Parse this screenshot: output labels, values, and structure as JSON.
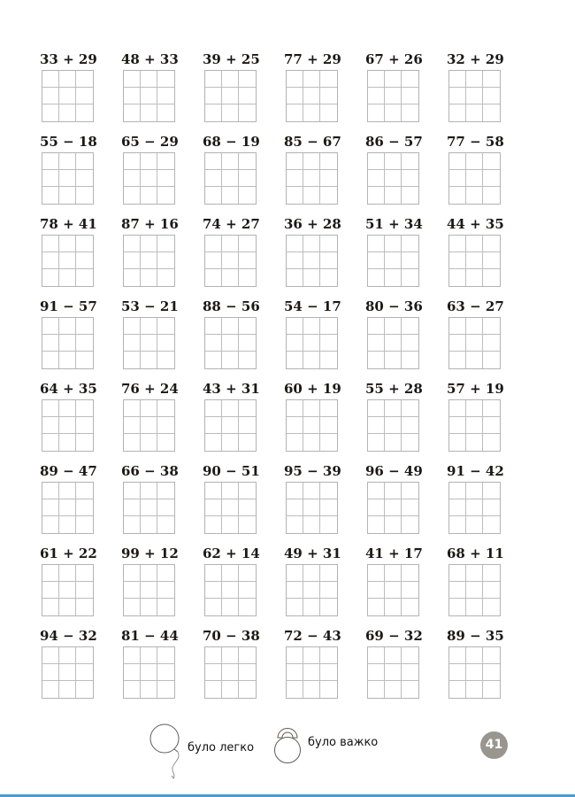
{
  "worksheet": {
    "rows": [
      [
        "33 + 29",
        "48 + 33",
        "39 + 25",
        "77 + 29",
        "67 + 26",
        "32 + 29"
      ],
      [
        "55 − 18",
        "65 − 29",
        "68 − 19",
        "85 − 67",
        "86 − 57",
        "77 − 58"
      ],
      [
        "78 + 41",
        "87 + 16",
        "74 + 27",
        "36 + 28",
        "51 + 34",
        "44 + 35"
      ],
      [
        "91 − 57",
        "53 − 21",
        "88 − 56",
        "54 − 17",
        "80 − 36",
        "63 − 27"
      ],
      [
        "64 + 35",
        "76 + 24",
        "43 + 31",
        "60 + 19",
        "55 + 28",
        "57 + 19"
      ],
      [
        "89 − 47",
        "66 − 38",
        "90 − 51",
        "95 − 39",
        "96 − 49",
        "91 − 42"
      ],
      [
        "61 + 22",
        "99 + 12",
        "62 + 14",
        "49 + 31",
        "41 + 17",
        "68 + 11"
      ],
      [
        "94 − 32",
        "81 − 44",
        "70 − 38",
        "72 − 43",
        "69 − 32",
        "89 − 35"
      ]
    ],
    "answer_grid": {
      "rows": 3,
      "cols": 3,
      "line_color": "#b3b3b3"
    }
  },
  "footer": {
    "easy_label": "було легко",
    "hard_label": "було важко",
    "icon_stroke": "#5f5b57"
  },
  "page": {
    "number": "41",
    "badge_color": "#9a968f",
    "bottom_bar_color": "#469dd4"
  }
}
